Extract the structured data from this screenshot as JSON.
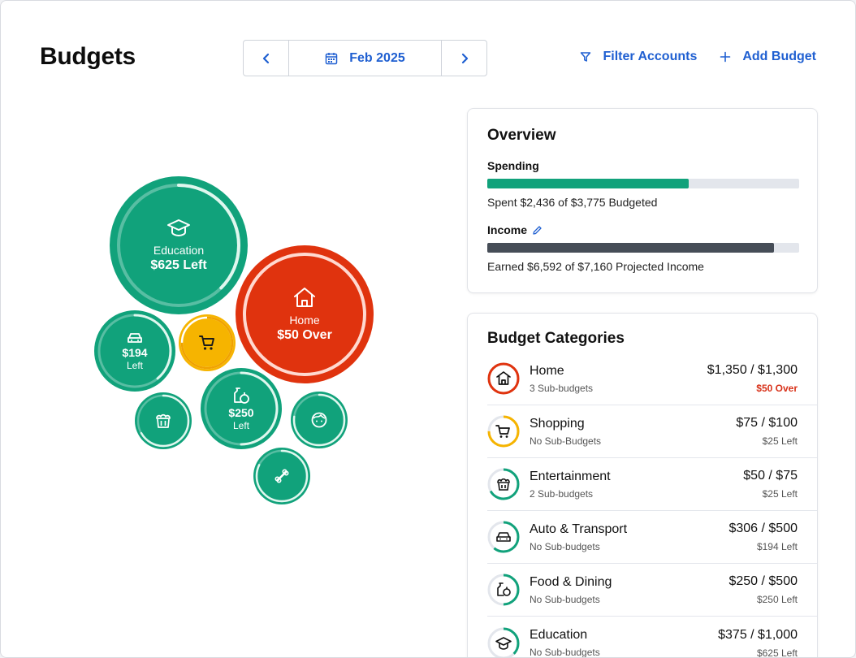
{
  "header": {
    "title": "Budgets",
    "date": "Feb 2025",
    "filter_label": "Filter Accounts",
    "add_label": "Add Budget"
  },
  "colors": {
    "green": "#11a27b",
    "red": "#e0330e",
    "yellow": "#f6b400",
    "accent": "#1f5fd1",
    "income_bar": "#464d57"
  },
  "bubbles": {
    "education": {
      "label": "Education",
      "value": "$625 Left",
      "icon": "graduation-cap-icon"
    },
    "home": {
      "label": "Home",
      "value": "$50 Over",
      "icon": "house-icon"
    },
    "auto": {
      "value": "$194",
      "sub": "Left",
      "icon": "car-icon"
    },
    "shopping": {
      "icon": "cart-icon"
    },
    "food": {
      "value": "$250",
      "sub": "Left",
      "icon": "bottle-icon"
    },
    "entertainment": {
      "icon": "popcorn-icon"
    },
    "personal": {
      "icon": "face-icon"
    },
    "pets": {
      "icon": "bone-icon"
    }
  },
  "overview": {
    "title": "Overview",
    "spending_label": "Spending",
    "spending_text": "Spent $2,436 of $3,775 Budgeted",
    "spending_fraction": 0.645,
    "income_label": "Income",
    "income_text": "Earned $6,592 of $7,160 Projected Income",
    "income_fraction": 0.92
  },
  "categories": {
    "title": "Budget Categories",
    "items": [
      {
        "name": "Home",
        "sub": "3 Sub-budgets",
        "amount": "$1,350 / $1,300",
        "status": "$50 Over",
        "over": true,
        "icon": "house-icon",
        "progress": 1.0,
        "color": "#e0330e"
      },
      {
        "name": "Shopping",
        "sub": "No Sub-Budgets",
        "amount": "$75 / $100",
        "status": "$25 Left",
        "over": false,
        "icon": "cart-icon",
        "progress": 0.75,
        "color": "#f6b400"
      },
      {
        "name": "Entertainment",
        "sub": "2 Sub-budgets",
        "amount": "$50 / $75",
        "status": "$25 Left",
        "over": false,
        "icon": "popcorn-icon",
        "progress": 0.67,
        "color": "#11a27b"
      },
      {
        "name": "Auto & Transport",
        "sub": "No Sub-budgets",
        "amount": "$306 / $500",
        "status": "$194 Left",
        "over": false,
        "icon": "car-icon",
        "progress": 0.61,
        "color": "#11a27b"
      },
      {
        "name": "Food & Dining",
        "sub": "No Sub-budgets",
        "amount": "$250 / $500",
        "status": "$250 Left",
        "over": false,
        "icon": "bottle-icon",
        "progress": 0.5,
        "color": "#11a27b"
      },
      {
        "name": "Education",
        "sub": "No Sub-budgets",
        "amount": "$375 / $1,000",
        "status": "$625 Left",
        "over": false,
        "icon": "graduation-cap-icon",
        "progress": 0.375,
        "color": "#11a27b"
      }
    ]
  }
}
